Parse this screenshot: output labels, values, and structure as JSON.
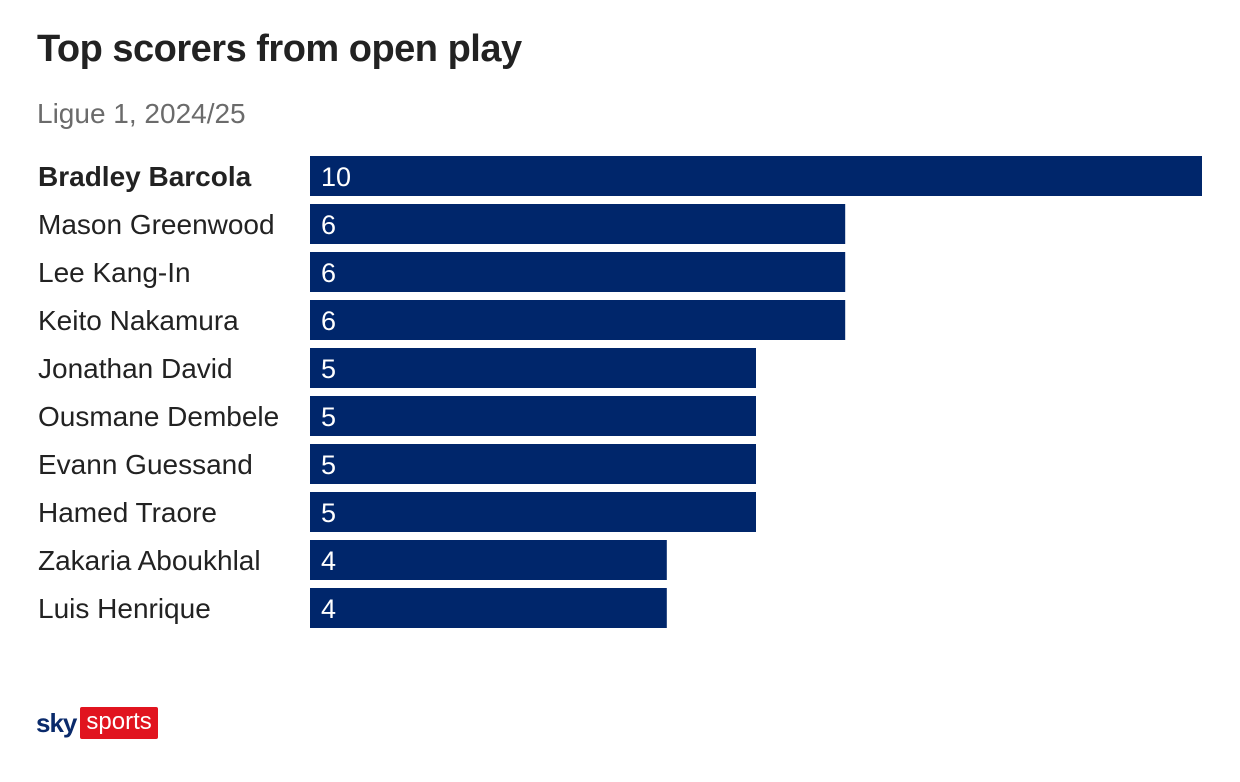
{
  "header": {
    "title": "Top scorers from open play",
    "subtitle": "Ligue 1, 2024/25"
  },
  "brand": {
    "sky": "sky",
    "sports": "sports"
  },
  "colors": {
    "bar": "#00266b",
    "value_text": "#ffffff",
    "brand_red": "#e1141f"
  },
  "chart_data": {
    "type": "bar",
    "orientation": "horizontal",
    "title": "Top scorers from open play",
    "subtitle": "Ligue 1, 2024/25",
    "categories": [
      "Bradley Barcola",
      "Mason Greenwood",
      "Lee Kang-In",
      "Keito Nakamura",
      "Jonathan David",
      "Ousmane Dembele",
      "Evann Guessand",
      "Hamed Traore",
      "Zakaria Aboukhlal",
      "Luis Henrique"
    ],
    "values": [
      10,
      6,
      6,
      6,
      5,
      5,
      5,
      5,
      4,
      4
    ],
    "highlighted": "Bradley Barcola",
    "xlim": [
      0,
      10
    ],
    "grid": false,
    "legend": "none"
  }
}
